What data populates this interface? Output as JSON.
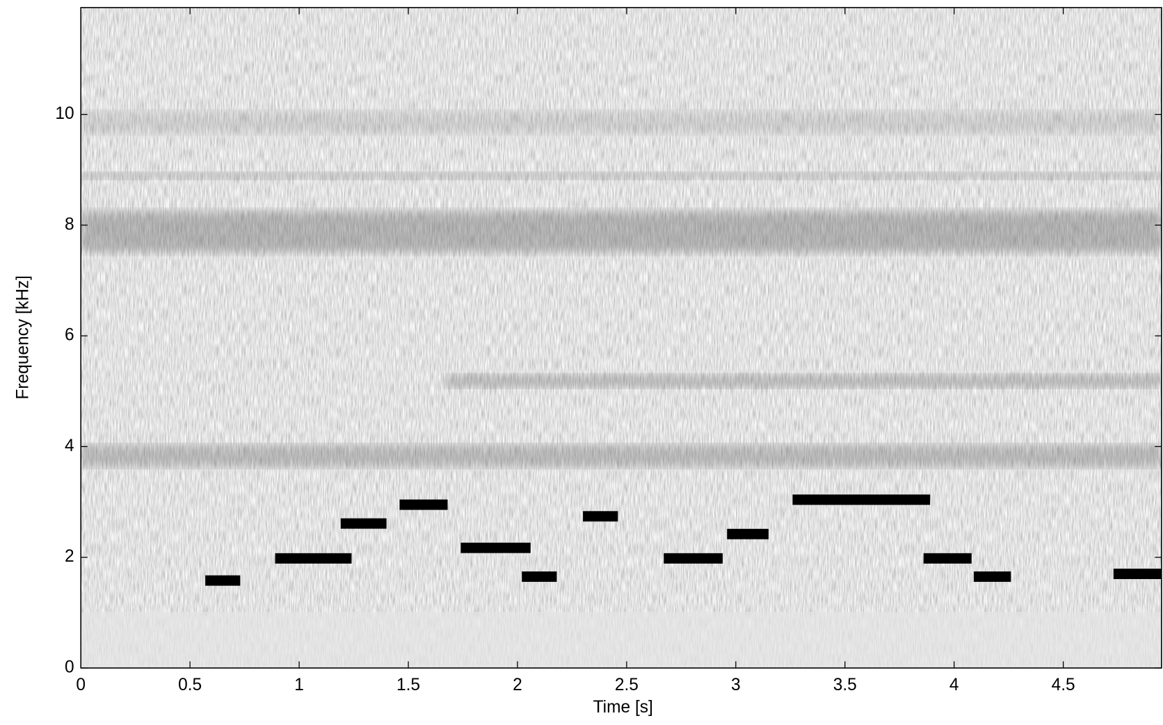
{
  "chart_data": {
    "type": "segment",
    "xlabel": "Time [s]",
    "ylabel": "Frequency [kHz]",
    "xlim": [
      0,
      4.95
    ],
    "ylim": [
      0,
      11.93
    ],
    "xticks": [
      0,
      0.5,
      1,
      1.5,
      2,
      2.5,
      3,
      3.5,
      4,
      4.5
    ],
    "yticks": [
      0,
      2,
      4,
      6,
      8,
      10
    ],
    "color": "#000000",
    "x_start": [
      0.57,
      0.89,
      1.19,
      1.46,
      1.74,
      2.02,
      2.3,
      2.67,
      2.96,
      3.26,
      3.86,
      4.09,
      4.73
    ],
    "x_end": [
      0.73,
      1.24,
      1.4,
      1.68,
      2.06,
      2.18,
      2.46,
      2.94,
      3.15,
      3.89,
      4.08,
      4.26,
      4.95
    ],
    "values": [
      1.58,
      1.98,
      2.61,
      2.95,
      2.17,
      1.65,
      2.74,
      1.98,
      2.42,
      3.04,
      1.98,
      1.65,
      1.7
    ]
  }
}
